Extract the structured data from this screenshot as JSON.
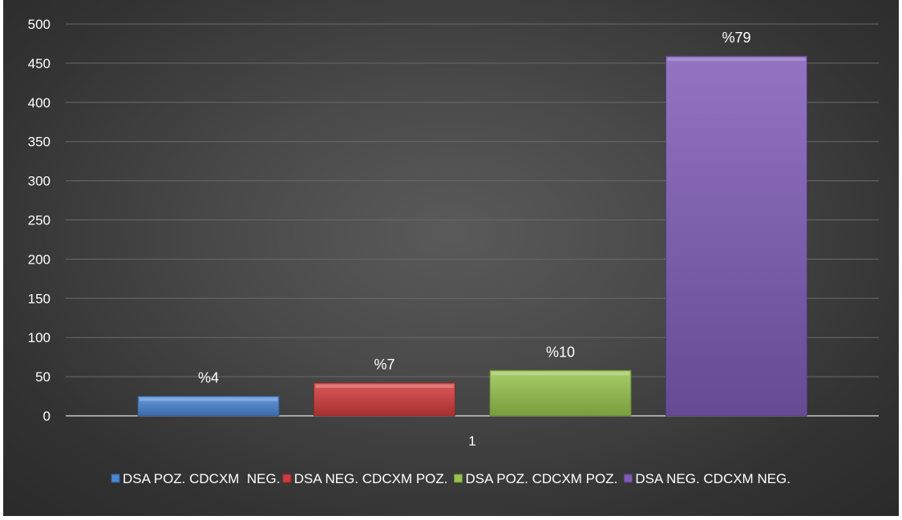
{
  "chart_data": {
    "type": "bar",
    "title": "",
    "xlabel": "",
    "ylabel": "",
    "categories": [
      "1"
    ],
    "ylim": [
      0,
      500
    ],
    "y_ticks": [
      0,
      50,
      100,
      150,
      200,
      250,
      300,
      350,
      400,
      450,
      500
    ],
    "grid": true,
    "legend_position": "bottom",
    "series": [
      {
        "name": "DSA POZ. CDCXM  NEG.",
        "values": [
          25
        ],
        "label": "%4",
        "color": "#4a86d4"
      },
      {
        "name": "DSA NEG. CDCXM POZ.",
        "values": [
          42
        ],
        "label": "%7",
        "color": "#d23c3c"
      },
      {
        "name": "DSA POZ. CDCXM POZ.",
        "values": [
          58
        ],
        "label": "%10",
        "color": "#98c44e"
      },
      {
        "name": "DSA NEG. CDCXM NEG.",
        "values": [
          459
        ],
        "label": "%79",
        "color": "#7f5cb8"
      }
    ]
  }
}
